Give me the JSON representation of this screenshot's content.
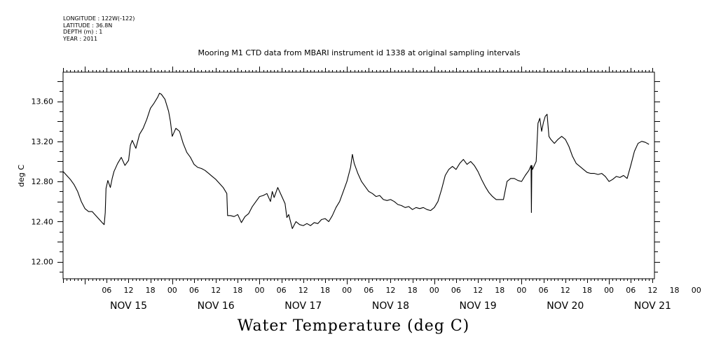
{
  "meta": {
    "longitude": "LONGITUDE : 122W(-122)",
    "latitude": "LATITUDE : 36.8N",
    "depth": "DEPTH (m) : 1",
    "year": "YEAR : 2011"
  },
  "chart_data": {
    "type": "line",
    "title": "Mooring M1 CTD data from MBARI instrument id 1338 at original sampling intervals",
    "bottom_title": "Water Temperature (deg C)",
    "ylabel": "deg C",
    "xlabel": "",
    "x_unit": "hours since NOV 15 00:00, 2011",
    "xlim": [
      -6,
      156.5
    ],
    "ylim": [
      11.83,
      13.89
    ],
    "grid": false,
    "y_ticks": [
      {
        "value": 12.0,
        "label": "12.00"
      },
      {
        "value": 12.4,
        "label": "12.40"
      },
      {
        "value": 12.8,
        "label": "12.80"
      },
      {
        "value": 13.2,
        "label": "13.20"
      },
      {
        "value": 13.6,
        "label": "13.60"
      }
    ],
    "hour_labels": [
      "06",
      "12",
      "18",
      "00",
      "06",
      "12",
      "18",
      "00",
      "06",
      "12",
      "18",
      "00",
      "06",
      "12",
      "18",
      "00",
      "06",
      "12",
      "18",
      "00",
      "06",
      "12",
      "18",
      "00",
      "06",
      "12",
      "18",
      "00"
    ],
    "day_labels": [
      "NOV 15",
      "NOV 16",
      "NOV 17",
      "NOV 18",
      "NOV 19",
      "NOV 20",
      "NOV 21"
    ],
    "series": [
      {
        "values": [
          [
            -6,
            12.9
          ],
          [
            -5,
            12.86
          ],
          [
            -4,
            12.82
          ],
          [
            -3,
            12.77
          ],
          [
            -2,
            12.7
          ],
          [
            -1,
            12.6
          ],
          [
            0,
            12.53
          ],
          [
            1,
            12.5
          ],
          [
            2,
            12.5
          ],
          [
            3,
            12.46
          ],
          [
            4,
            12.42
          ],
          [
            5,
            12.38
          ],
          [
            5.3,
            12.37
          ],
          [
            5.6,
            12.49
          ],
          [
            5.8,
            12.73
          ],
          [
            6.3,
            12.81
          ],
          [
            7,
            12.74
          ],
          [
            7.5,
            12.83
          ],
          [
            8,
            12.9
          ],
          [
            9,
            12.98
          ],
          [
            10,
            13.04
          ],
          [
            11,
            12.96
          ],
          [
            12,
            13.01
          ],
          [
            12.5,
            13.16
          ],
          [
            13,
            13.21
          ],
          [
            14,
            13.13
          ],
          [
            15,
            13.27
          ],
          [
            16,
            13.33
          ],
          [
            17,
            13.42
          ],
          [
            18,
            13.53
          ],
          [
            19,
            13.58
          ],
          [
            20,
            13.64
          ],
          [
            20.5,
            13.68
          ],
          [
            21,
            13.67
          ],
          [
            22,
            13.62
          ],
          [
            23,
            13.5
          ],
          [
            23.5,
            13.4
          ],
          [
            24,
            13.25
          ],
          [
            25,
            13.33
          ],
          [
            26,
            13.3
          ],
          [
            27,
            13.18
          ],
          [
            28,
            13.09
          ],
          [
            29,
            13.04
          ],
          [
            30,
            12.97
          ],
          [
            31,
            12.94
          ],
          [
            32,
            12.93
          ],
          [
            33,
            12.91
          ],
          [
            34,
            12.88
          ],
          [
            35,
            12.85
          ],
          [
            36,
            12.82
          ],
          [
            37,
            12.78
          ],
          [
            38,
            12.74
          ],
          [
            39,
            12.68
          ],
          [
            39.2,
            12.46
          ],
          [
            40,
            12.46
          ],
          [
            41,
            12.45
          ],
          [
            42,
            12.47
          ],
          [
            43,
            12.39
          ],
          [
            44,
            12.45
          ],
          [
            45,
            12.48
          ],
          [
            46,
            12.55
          ],
          [
            47,
            12.6
          ],
          [
            48,
            12.65
          ],
          [
            49,
            12.66
          ],
          [
            50,
            12.68
          ],
          [
            51,
            12.6
          ],
          [
            51.5,
            12.7
          ],
          [
            52,
            12.64
          ],
          [
            53,
            12.74
          ],
          [
            54,
            12.66
          ],
          [
            55,
            12.58
          ],
          [
            55.5,
            12.44
          ],
          [
            56,
            12.47
          ],
          [
            57,
            12.33
          ],
          [
            58,
            12.4
          ],
          [
            59,
            12.37
          ],
          [
            60,
            12.36
          ],
          [
            61,
            12.38
          ],
          [
            62,
            12.36
          ],
          [
            63,
            12.39
          ],
          [
            64,
            12.38
          ],
          [
            65,
            12.42
          ],
          [
            66,
            12.43
          ],
          [
            67,
            12.4
          ],
          [
            68,
            12.46
          ],
          [
            69,
            12.54
          ],
          [
            70,
            12.6
          ],
          [
            71,
            12.7
          ],
          [
            72,
            12.8
          ],
          [
            73,
            12.94
          ],
          [
            73.5,
            13.07
          ],
          [
            74,
            12.98
          ],
          [
            75,
            12.88
          ],
          [
            76,
            12.8
          ],
          [
            77,
            12.75
          ],
          [
            78,
            12.7
          ],
          [
            79,
            12.68
          ],
          [
            80,
            12.65
          ],
          [
            81,
            12.66
          ],
          [
            82,
            12.62
          ],
          [
            83,
            12.61
          ],
          [
            84,
            12.62
          ],
          [
            85,
            12.6
          ],
          [
            86,
            12.57
          ],
          [
            87,
            12.56
          ],
          [
            88,
            12.54
          ],
          [
            89,
            12.55
          ],
          [
            90,
            12.52
          ],
          [
            91,
            12.54
          ],
          [
            92,
            12.53
          ],
          [
            93,
            12.54
          ],
          [
            94,
            12.52
          ],
          [
            95,
            12.51
          ],
          [
            96,
            12.54
          ],
          [
            97,
            12.6
          ],
          [
            98,
            12.72
          ],
          [
            99,
            12.86
          ],
          [
            100,
            12.92
          ],
          [
            101,
            12.95
          ],
          [
            102,
            12.92
          ],
          [
            103,
            12.98
          ],
          [
            104,
            13.02
          ],
          [
            105,
            12.97
          ],
          [
            106,
            13.0
          ],
          [
            107,
            12.96
          ],
          [
            108,
            12.9
          ],
          [
            109,
            12.82
          ],
          [
            110,
            12.75
          ],
          [
            111,
            12.69
          ],
          [
            112,
            12.65
          ],
          [
            113,
            12.62
          ],
          [
            114,
            12.62
          ],
          [
            115,
            12.62
          ],
          [
            116,
            12.8
          ],
          [
            117,
            12.83
          ],
          [
            118,
            12.83
          ],
          [
            119,
            12.81
          ],
          [
            120,
            12.8
          ],
          [
            121,
            12.86
          ],
          [
            122,
            12.91
          ],
          [
            122.6,
            12.96
          ],
          [
            122.7,
            12.49
          ],
          [
            122.8,
            12.96
          ],
          [
            123,
            12.92
          ],
          [
            123.5,
            12.96
          ],
          [
            124,
            13.0
          ],
          [
            124.5,
            13.38
          ],
          [
            125,
            13.43
          ],
          [
            125.5,
            13.3
          ],
          [
            126,
            13.39
          ],
          [
            126.5,
            13.45
          ],
          [
            127,
            13.47
          ],
          [
            127.5,
            13.25
          ],
          [
            128,
            13.22
          ],
          [
            129,
            13.18
          ],
          [
            130,
            13.22
          ],
          [
            131,
            13.25
          ],
          [
            132,
            13.22
          ],
          [
            133,
            13.15
          ],
          [
            134,
            13.05
          ],
          [
            135,
            12.98
          ],
          [
            136,
            12.95
          ],
          [
            137,
            12.92
          ],
          [
            138,
            12.89
          ],
          [
            139,
            12.88
          ],
          [
            140,
            12.88
          ],
          [
            141,
            12.87
          ],
          [
            142,
            12.88
          ],
          [
            143,
            12.85
          ],
          [
            144,
            12.8
          ],
          [
            145,
            12.82
          ],
          [
            146,
            12.85
          ],
          [
            147,
            12.84
          ],
          [
            148,
            12.86
          ],
          [
            149,
            12.83
          ],
          [
            150,
            12.96
          ],
          [
            151,
            13.1
          ],
          [
            152,
            13.18
          ],
          [
            153,
            13.2
          ],
          [
            154,
            13.19
          ],
          [
            155,
            13.17
          ]
        ]
      }
    ]
  }
}
